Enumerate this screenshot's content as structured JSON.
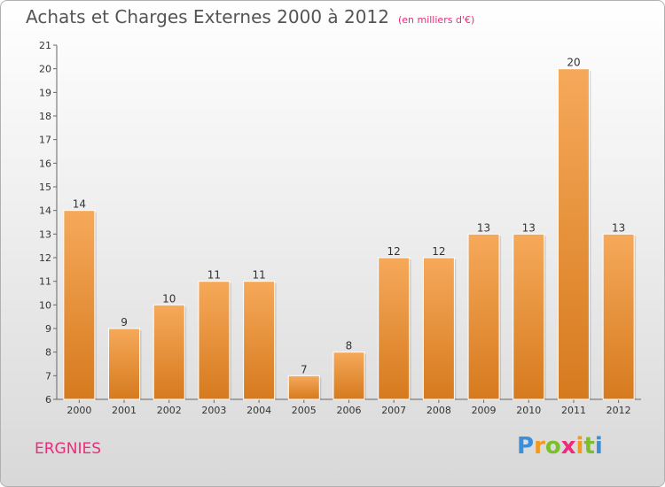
{
  "header": {
    "title": "Achats et Charges Externes 2000 à 2012",
    "subtitle": "(en milliers d'€)"
  },
  "commune": "ERGNIES",
  "brand": {
    "name": "Proxiti",
    "letters": [
      "P",
      "r",
      "o",
      "x",
      "i",
      "t",
      "i"
    ]
  },
  "colors": {
    "bar_top": "#f6a95a",
    "bar_bottom": "#d67a1e",
    "accent": "#ee2a7b"
  },
  "chart_data": {
    "type": "bar",
    "title": "Achats et Charges Externes 2000 à 2012",
    "subtitle": "(en milliers d'€)",
    "categories": [
      "2000",
      "2001",
      "2002",
      "2003",
      "2004",
      "2005",
      "2006",
      "2007",
      "2008",
      "2009",
      "2010",
      "2011",
      "2012"
    ],
    "values": [
      14,
      9,
      10,
      11,
      11,
      7,
      8,
      12,
      12,
      13,
      13,
      20,
      13
    ],
    "ylim": [
      6,
      21
    ],
    "yticks": [
      6,
      7,
      8,
      9,
      10,
      11,
      12,
      13,
      14,
      15,
      16,
      17,
      18,
      19,
      20,
      21
    ],
    "xlabel": "",
    "ylabel": "",
    "grid": false,
    "data_labels": true
  }
}
